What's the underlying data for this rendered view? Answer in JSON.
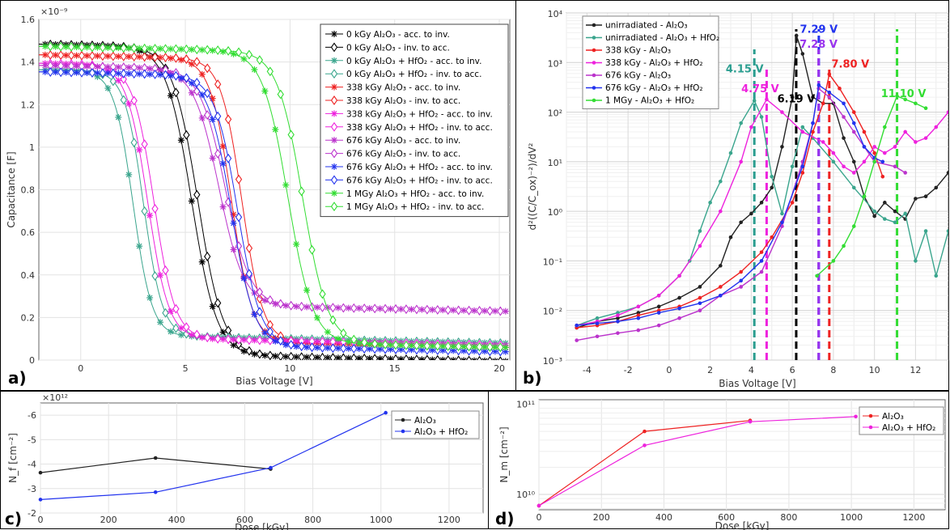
{
  "panels": {
    "a": {
      "label": "a)"
    },
    "b": {
      "label": "b)"
    },
    "c": {
      "label": "c)"
    },
    "d": {
      "label": "d)"
    }
  },
  "chart_data": [
    {
      "id": "a",
      "type": "line",
      "ylabel": "Capacitance [F]",
      "xlabel": "Bias Voltage [V]",
      "y_multiplier": "×10⁻⁹",
      "xlim": [
        -2,
        20.5
      ],
      "ylim": [
        0,
        1.6
      ],
      "xticks": [
        "0",
        "5",
        "10",
        "15",
        "20"
      ],
      "yticks": [
        "0",
        "0.2",
        "0.4",
        "0.6",
        "0.8",
        "1",
        "1.2",
        "1.4",
        "1.6"
      ],
      "grid": true,
      "legend_position": "top-right",
      "series": [
        {
          "name": "0 kGy Al₂O₃ - acc. to inv.",
          "color": "#000000",
          "marker": "star",
          "Cmax": 1.48,
          "Cmin": 0.035,
          "Vmid": 5.3,
          "w": 0.6
        },
        {
          "name": "0 kGy Al₂O₃ - inv. to acc.",
          "color": "#000000",
          "marker": "diamond",
          "Cmax": 1.48,
          "Cmin": 0.035,
          "Vmid": 5.6,
          "w": 0.6
        },
        {
          "name": "0 kGy Al₂O₃ + HfO₂ - acc. to inv.",
          "color": "#3aa58d",
          "marker": "star",
          "Cmax": 1.36,
          "Cmin": 0.12,
          "Vmid": 2.5,
          "w": 0.45
        },
        {
          "name": "0 kGy Al₂O₃ + HfO₂ - inv. to acc.",
          "color": "#3aa58d",
          "marker": "diamond",
          "Cmax": 1.36,
          "Cmin": 0.12,
          "Vmid": 3.0,
          "w": 0.45
        },
        {
          "name": "338 kGy Al₂O₃ - acc. to inv.",
          "color": "#ee2222",
          "marker": "star",
          "Cmax": 1.43,
          "Cmin": 0.1,
          "Vmid": 7.2,
          "w": 0.5
        },
        {
          "name": "338 kGy Al₂O₃ - inv. to acc.",
          "color": "#ee2222",
          "marker": "diamond",
          "Cmax": 1.43,
          "Cmin": 0.1,
          "Vmid": 7.7,
          "w": 0.5
        },
        {
          "name": "338 kGy Al₂O₃ + HfO₂ - acc. to inv.",
          "color": "#ee22dd",
          "marker": "star",
          "Cmax": 1.39,
          "Cmin": 0.11,
          "Vmid": 3.2,
          "w": 0.5
        },
        {
          "name": "338 kGy Al₂O₃ + HfO₂ - inv. to acc.",
          "color": "#ee22dd",
          "marker": "diamond",
          "Cmax": 1.39,
          "Cmin": 0.11,
          "Vmid": 3.5,
          "w": 0.5
        },
        {
          "name": "676 kGy Al₂O₃ - acc. to inv.",
          "color": "#bb33cc",
          "marker": "star",
          "Cmax": 1.38,
          "Cmin": 0.27,
          "Vmid": 6.6,
          "w": 0.6
        },
        {
          "name": "676 kGy Al₂O₃ - inv. to acc.",
          "color": "#bb33cc",
          "marker": "diamond",
          "Cmax": 1.38,
          "Cmin": 0.27,
          "Vmid": 6.9,
          "w": 0.6
        },
        {
          "name": "676 kGy Al₂O₃ + HfO₂ - acc. to inv.",
          "color": "#2233ee",
          "marker": "star",
          "Cmax": 1.35,
          "Cmin": 0.08,
          "Vmid": 7.2,
          "w": 0.55
        },
        {
          "name": "676 kGy Al₂O₃ + HfO₂ - inv. to acc.",
          "color": "#2233ee",
          "marker": "diamond",
          "Cmax": 1.35,
          "Cmin": 0.08,
          "Vmid": 7.5,
          "w": 0.55
        },
        {
          "name": "1 MGy Al₂O₃ + HfO₂ - acc. to inv.",
          "color": "#33dd33",
          "marker": "star",
          "Cmax": 1.47,
          "Cmin": 0.1,
          "Vmid": 9.9,
          "w": 0.6
        },
        {
          "name": "1 MGy Al₂O₃ + HfO₂ - inv. to acc.",
          "color": "#33dd33",
          "marker": "diamond",
          "Cmax": 1.47,
          "Cmin": 0.1,
          "Vmid": 10.6,
          "w": 0.6
        }
      ]
    },
    {
      "id": "b",
      "type": "line",
      "scale_y": "log",
      "ylabel": "d²((C/C_ox)⁻²)/dV²",
      "xlabel": "Bias Voltage [V]",
      "xlim": [
        -5,
        13.6
      ],
      "ylim_exp": [
        -3,
        4
      ],
      "xticks": [
        "-4",
        "-2",
        "0",
        "2",
        "4",
        "6",
        "8",
        "10",
        "12"
      ],
      "yticks": [
        "10⁻³",
        "10⁻²",
        "10⁻¹",
        "10⁰",
        "10¹",
        "10²",
        "10³",
        "10⁴"
      ],
      "grid": true,
      "legend_position": "top-left",
      "series": [
        {
          "name": "unirradiated - Al₂O₃",
          "color": "#222222",
          "points": [
            [
              -4.5,
              0.0045
            ],
            [
              -3.5,
              0.006
            ],
            [
              -2.5,
              0.007
            ],
            [
              -1.5,
              0.009
            ],
            [
              -0.5,
              0.012
            ],
            [
              0.5,
              0.018
            ],
            [
              1.5,
              0.03
            ],
            [
              2.5,
              0.08
            ],
            [
              3,
              0.3
            ],
            [
              3.5,
              0.6
            ],
            [
              4,
              0.9
            ],
            [
              4.5,
              1.5
            ],
            [
              5,
              3
            ],
            [
              5.5,
              20
            ],
            [
              6,
              200
            ],
            [
              6.2,
              3500
            ],
            [
              6.5,
              1500
            ],
            [
              7,
              200
            ],
            [
              7.5,
              150
            ],
            [
              8,
              150
            ],
            [
              8.5,
              30
            ],
            [
              9,
              10
            ],
            [
              9.5,
              2
            ],
            [
              10,
              0.8
            ],
            [
              10.5,
              1.5
            ],
            [
              11,
              1
            ],
            [
              11.5,
              0.7
            ],
            [
              12,
              1.8
            ],
            [
              12.5,
              2
            ],
            [
              13,
              3
            ],
            [
              13.6,
              6
            ]
          ]
        },
        {
          "name": "unirradiated - Al₂O₃ + HfO₂",
          "color": "#3aa58d",
          "points": [
            [
              -4.5,
              0.005
            ],
            [
              -3.5,
              0.007
            ],
            [
              -2.5,
              0.009
            ],
            [
              -1.5,
              0.012
            ],
            [
              -0.5,
              0.02
            ],
            [
              0.5,
              0.05
            ],
            [
              1,
              0.1
            ],
            [
              1.5,
              0.4
            ],
            [
              2,
              1.5
            ],
            [
              2.5,
              4
            ],
            [
              3,
              15
            ],
            [
              3.5,
              60
            ],
            [
              4.15,
              170
            ],
            [
              4.5,
              80
            ],
            [
              5,
              5
            ],
            [
              5.5,
              0.9
            ],
            [
              6,
              8
            ],
            [
              6.5,
              50
            ],
            [
              7,
              30
            ],
            [
              8,
              10
            ],
            [
              9,
              3
            ],
            [
              10,
              1
            ],
            [
              10.5,
              0.7
            ],
            [
              11,
              0.6
            ],
            [
              11.5,
              0.9
            ],
            [
              12,
              0.1
            ],
            [
              12.5,
              0.4
            ],
            [
              13,
              0.05
            ],
            [
              13.6,
              0.4
            ]
          ]
        },
        {
          "name": "338 kGy - Al₂O₃",
          "color": "#ee2222",
          "points": [
            [
              -4.5,
              0.0045
            ],
            [
              -3.5,
              0.005
            ],
            [
              -2.5,
              0.006
            ],
            [
              -1.5,
              0.008
            ],
            [
              -0.5,
              0.01
            ],
            [
              0.5,
              0.012
            ],
            [
              1.5,
              0.018
            ],
            [
              2.5,
              0.03
            ],
            [
              3.5,
              0.06
            ],
            [
              4.5,
              0.15
            ],
            [
              5,
              0.3
            ],
            [
              6,
              1.5
            ],
            [
              6.5,
              6
            ],
            [
              7,
              40
            ],
            [
              7.5,
              150
            ],
            [
              7.8,
              580
            ],
            [
              8.3,
              300
            ],
            [
              9,
              100
            ],
            [
              9.5,
              40
            ],
            [
              10,
              15
            ],
            [
              10.4,
              5
            ]
          ]
        },
        {
          "name": "338 kGy - Al₂O₃ + HfO₂",
          "color": "#ee22dd",
          "points": [
            [
              -4.5,
              0.005
            ],
            [
              -3.5,
              0.006
            ],
            [
              -2.5,
              0.008
            ],
            [
              -1.5,
              0.012
            ],
            [
              -0.5,
              0.02
            ],
            [
              0.5,
              0.05
            ],
            [
              1.5,
              0.2
            ],
            [
              2.5,
              1
            ],
            [
              3.5,
              10
            ],
            [
              4,
              50
            ],
            [
              4.75,
              180
            ],
            [
              5.5,
              100
            ],
            [
              6.5,
              40
            ],
            [
              7.5,
              25
            ],
            [
              8,
              15
            ],
            [
              8.5,
              8
            ],
            [
              9,
              6
            ],
            [
              9.5,
              10
            ],
            [
              10,
              20
            ],
            [
              10.5,
              15
            ],
            [
              11,
              20
            ],
            [
              11.5,
              40
            ],
            [
              12,
              25
            ],
            [
              12.5,
              30
            ],
            [
              13,
              50
            ],
            [
              13.6,
              100
            ]
          ]
        },
        {
          "name": "676 kGy - Al₂O₃",
          "color": "#bb33cc",
          "points": [
            [
              -4.5,
              0.0025
            ],
            [
              -3.5,
              0.003
            ],
            [
              -2.5,
              0.0035
            ],
            [
              -1.5,
              0.004
            ],
            [
              -0.5,
              0.005
            ],
            [
              0.5,
              0.007
            ],
            [
              1.5,
              0.01
            ],
            [
              2.5,
              0.02
            ],
            [
              3.5,
              0.03
            ],
            [
              4.5,
              0.06
            ],
            [
              5.5,
              0.5
            ],
            [
              6.5,
              10
            ],
            [
              7,
              60
            ],
            [
              7.28,
              300
            ],
            [
              7.8,
              200
            ],
            [
              8.5,
              80
            ],
            [
              9,
              40
            ],
            [
              9.5,
              20
            ],
            [
              10,
              10
            ],
            [
              11,
              8
            ],
            [
              11.5,
              6
            ]
          ]
        },
        {
          "name": "676 kGy - Al₂O₃ + HfO₂",
          "color": "#2233ee",
          "points": [
            [
              -4.5,
              0.005
            ],
            [
              -3.5,
              0.0055
            ],
            [
              -2.5,
              0.006
            ],
            [
              -1.5,
              0.007
            ],
            [
              -0.5,
              0.009
            ],
            [
              0.5,
              0.011
            ],
            [
              1.5,
              0.014
            ],
            [
              2.5,
              0.02
            ],
            [
              3.5,
              0.04
            ],
            [
              4.5,
              0.1
            ],
            [
              5.5,
              0.6
            ],
            [
              6.5,
              8
            ],
            [
              7,
              60
            ],
            [
              7.29,
              350
            ],
            [
              7.8,
              250
            ],
            [
              8.5,
              150
            ],
            [
              9,
              60
            ],
            [
              9.5,
              20
            ],
            [
              10,
              12
            ],
            [
              10.4,
              10
            ]
          ]
        },
        {
          "name": "1 MGy - Al₂O₃ + HfO₂",
          "color": "#33dd33",
          "points": [
            [
              7.2,
              0.05
            ],
            [
              8,
              0.1
            ],
            [
              8.5,
              0.2
            ],
            [
              9,
              0.5
            ],
            [
              9.5,
              2
            ],
            [
              10,
              10
            ],
            [
              10.5,
              50
            ],
            [
              11.1,
              210
            ],
            [
              11.5,
              180
            ],
            [
              12,
              150
            ],
            [
              12.5,
              120
            ]
          ]
        }
      ],
      "annotations": [
        {
          "text": "6.19 V",
          "x": 6.19,
          "color": "#000000"
        },
        {
          "text": "4.15 V",
          "x": 4.15,
          "color": "#2a9d8f"
        },
        {
          "text": "4.75 V",
          "x": 4.75,
          "color": "#ee22dd"
        },
        {
          "text": "7.29 V",
          "x": 7.29,
          "color": "#2233ee"
        },
        {
          "text": "7.28 V",
          "x": 7.28,
          "color": "#9933ee"
        },
        {
          "text": "7.80 V",
          "x": 7.8,
          "color": "#ee2222"
        },
        {
          "text": "11.10 V",
          "x": 11.1,
          "color": "#33dd33"
        }
      ]
    },
    {
      "id": "c",
      "type": "line",
      "ylabel": "N_f [cm⁻²]",
      "xlabel": "Dose [kGy]",
      "y_multiplier": "×10¹²",
      "xlim": [
        0,
        1300
      ],
      "ylim": [
        -2,
        -6.5
      ],
      "xticks": [
        "0",
        "200",
        "400",
        "600",
        "800",
        "1000",
        "1200"
      ],
      "yticks": [
        "-2",
        "-3",
        "-4",
        "-5",
        "-6"
      ],
      "grid": true,
      "legend_position": "top-right",
      "series": [
        {
          "name": "Al₂O₃",
          "color": "#222222",
          "points": [
            [
              0,
              -3.65
            ],
            [
              338,
              -4.25
            ],
            [
              676,
              -3.8
            ]
          ]
        },
        {
          "name": "Al₂O₃ + HfO₂",
          "color": "#2233ee",
          "points": [
            [
              0,
              -2.55
            ],
            [
              338,
              -2.85
            ],
            [
              676,
              -3.85
            ],
            [
              1014,
              -6.1
            ]
          ]
        }
      ]
    },
    {
      "id": "d",
      "type": "line",
      "scale_y": "log",
      "ylabel": "N_m [cm⁻²]",
      "xlabel": "Dose [kGy]",
      "xlim": [
        0,
        1300
      ],
      "ylim_exp": [
        9.83,
        11.05
      ],
      "xticks": [
        "0",
        "200",
        "400",
        "600",
        "800",
        "1000",
        "1200"
      ],
      "yticks": [
        "10¹⁰",
        "10¹¹"
      ],
      "grid": true,
      "legend_position": "top-right",
      "series": [
        {
          "name": "Al₂O₃",
          "color": "#ee2222",
          "points": [
            [
              0,
              7500000000.0
            ],
            [
              338,
              50000000000.0
            ],
            [
              676,
              66000000000.0
            ]
          ]
        },
        {
          "name": "Al₂O₃ + HfO₂",
          "color": "#ee22dd",
          "points": [
            [
              0,
              7500000000.0
            ],
            [
              338,
              35000000000.0
            ],
            [
              676,
              64000000000.0
            ],
            [
              1014,
              73000000000.0
            ]
          ]
        }
      ]
    }
  ]
}
